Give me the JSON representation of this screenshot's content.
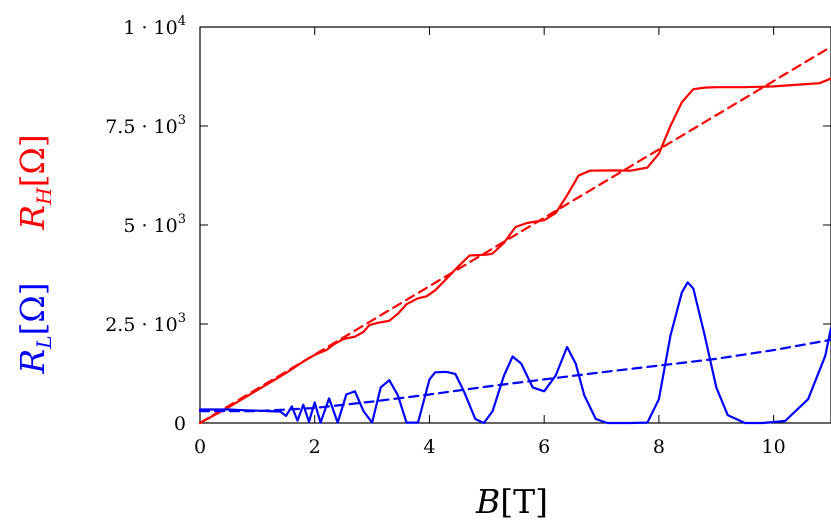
{
  "chart_data": {
    "type": "line",
    "xlabel": "B[T]",
    "ylabels": [
      {
        "text": "R_H[Ω]",
        "color": "#ff0000"
      },
      {
        "text": "R_L[Ω]",
        "color": "#0000ff"
      }
    ],
    "xlim": [
      0,
      11
    ],
    "ylim": [
      0,
      10000
    ],
    "x_ticks": [
      0,
      2,
      4,
      6,
      8,
      10
    ],
    "x_tick_labels": [
      "0",
      "2",
      "4",
      "6",
      "8",
      "10"
    ],
    "y_ticks": [
      {
        "value": 0,
        "mantissa": "0",
        "exp": ""
      },
      {
        "value": 2500,
        "mantissa": "2.5 · 10",
        "exp": "3"
      },
      {
        "value": 5000,
        "mantissa": "5 · 10",
        "exp": "3"
      },
      {
        "value": 7500,
        "mantissa": "7.5 · 10",
        "exp": "3"
      },
      {
        "value": 10000,
        "mantissa": "1 · 10",
        "exp": "4"
      }
    ],
    "grid": false,
    "legend": "none",
    "series": [
      {
        "color": "#ff0000",
        "style": "solid",
        "points": [
          [
            0,
            0
          ],
          [
            0.5,
            400
          ],
          [
            1.0,
            830
          ],
          [
            1.5,
            1260
          ],
          [
            1.8,
            1550
          ],
          [
            2.0,
            1720
          ],
          [
            2.2,
            1840
          ],
          [
            2.35,
            2000
          ],
          [
            2.5,
            2120
          ],
          [
            2.7,
            2180
          ],
          [
            2.85,
            2300
          ],
          [
            2.95,
            2470
          ],
          [
            3.1,
            2530
          ],
          [
            3.3,
            2580
          ],
          [
            3.45,
            2760
          ],
          [
            3.6,
            3000
          ],
          [
            3.8,
            3150
          ],
          [
            3.95,
            3200
          ],
          [
            4.1,
            3350
          ],
          [
            4.3,
            3650
          ],
          [
            4.5,
            3950
          ],
          [
            4.7,
            4230
          ],
          [
            5.0,
            4250
          ],
          [
            5.1,
            4280
          ],
          [
            5.3,
            4550
          ],
          [
            5.5,
            4950
          ],
          [
            5.7,
            5050
          ],
          [
            6.0,
            5120
          ],
          [
            6.2,
            5300
          ],
          [
            6.4,
            5750
          ],
          [
            6.6,
            6250
          ],
          [
            6.8,
            6370
          ],
          [
            7.2,
            6380
          ],
          [
            7.5,
            6370
          ],
          [
            7.8,
            6450
          ],
          [
            8.0,
            6800
          ],
          [
            8.2,
            7500
          ],
          [
            8.4,
            8100
          ],
          [
            8.6,
            8430
          ],
          [
            8.8,
            8470
          ],
          [
            9.0,
            8480
          ],
          [
            9.5,
            8480
          ],
          [
            10.0,
            8500
          ],
          [
            10.5,
            8550
          ],
          [
            10.8,
            8580
          ],
          [
            11.0,
            8700
          ]
        ]
      },
      {
        "color": "#ff0000",
        "style": "dashed",
        "points": [
          [
            0,
            0
          ],
          [
            11.0,
            9500
          ]
        ]
      },
      {
        "color": "#0000ff",
        "style": "solid",
        "points": [
          [
            0,
            340
          ],
          [
            0.5,
            340
          ],
          [
            0.8,
            320
          ],
          [
            1.0,
            310
          ],
          [
            1.2,
            300
          ],
          [
            1.4,
            290
          ],
          [
            1.5,
            180
          ],
          [
            1.6,
            420
          ],
          [
            1.7,
            60
          ],
          [
            1.8,
            460
          ],
          [
            1.9,
            30
          ],
          [
            2.0,
            520
          ],
          [
            2.1,
            10
          ],
          [
            2.25,
            620
          ],
          [
            2.4,
            10
          ],
          [
            2.55,
            720
          ],
          [
            2.7,
            800
          ],
          [
            2.85,
            300
          ],
          [
            3.0,
            10
          ],
          [
            3.15,
            900
          ],
          [
            3.3,
            1080
          ],
          [
            3.45,
            700
          ],
          [
            3.6,
            10
          ],
          [
            3.8,
            10
          ],
          [
            4.0,
            1100
          ],
          [
            4.1,
            1280
          ],
          [
            4.3,
            1290
          ],
          [
            4.45,
            1240
          ],
          [
            4.6,
            800
          ],
          [
            4.8,
            100
          ],
          [
            4.95,
            0
          ],
          [
            5.1,
            300
          ],
          [
            5.3,
            1200
          ],
          [
            5.45,
            1680
          ],
          [
            5.6,
            1500
          ],
          [
            5.8,
            900
          ],
          [
            6.0,
            800
          ],
          [
            6.2,
            1200
          ],
          [
            6.4,
            1920
          ],
          [
            6.55,
            1500
          ],
          [
            6.7,
            700
          ],
          [
            6.9,
            100
          ],
          [
            7.1,
            0
          ],
          [
            7.5,
            0
          ],
          [
            7.8,
            10
          ],
          [
            8.0,
            600
          ],
          [
            8.2,
            2200
          ],
          [
            8.4,
            3300
          ],
          [
            8.5,
            3550
          ],
          [
            8.6,
            3400
          ],
          [
            8.8,
            2200
          ],
          [
            9.0,
            900
          ],
          [
            9.2,
            200
          ],
          [
            9.5,
            0
          ],
          [
            9.8,
            0
          ],
          [
            10.2,
            50
          ],
          [
            10.6,
            600
          ],
          [
            10.9,
            1700
          ],
          [
            11.0,
            2400
          ]
        ]
      },
      {
        "color": "#0000ff",
        "style": "dashed",
        "points": [
          [
            0,
            300
          ],
          [
            1,
            300
          ],
          [
            2,
            380
          ],
          [
            3,
            540
          ],
          [
            4,
            720
          ],
          [
            5,
            920
          ],
          [
            6,
            1100
          ],
          [
            7,
            1280
          ],
          [
            8,
            1450
          ],
          [
            9,
            1620
          ],
          [
            10,
            1840
          ],
          [
            11,
            2100
          ]
        ]
      }
    ]
  }
}
